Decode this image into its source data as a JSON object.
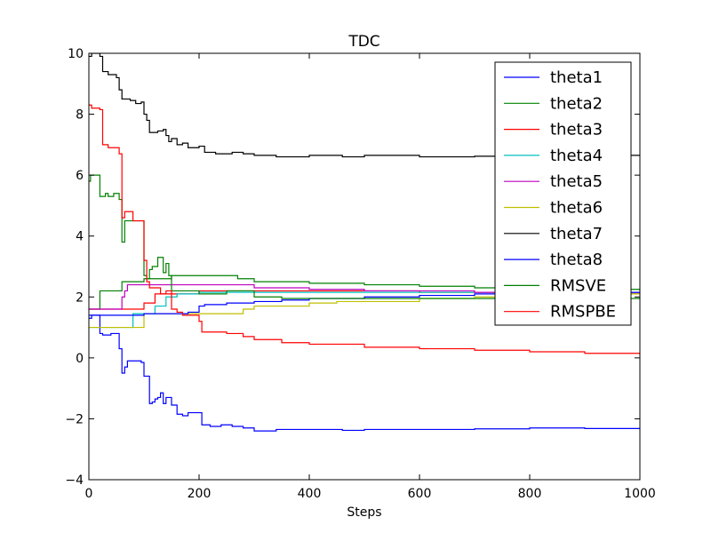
{
  "chart_data": {
    "type": "line",
    "title": "TDC",
    "xlabel": "Steps",
    "ylabel": "",
    "xlim": [
      0,
      1000
    ],
    "ylim": [
      -4,
      10
    ],
    "xticks": [
      0,
      200,
      400,
      600,
      800,
      1000
    ],
    "yticks": [
      -4,
      -2,
      0,
      2,
      4,
      6,
      8,
      10
    ],
    "grid": false,
    "legend_position": "top-right",
    "series": [
      {
        "name": "theta1",
        "color": "#0000ff",
        "x": [
          0,
          5,
          10,
          20,
          25,
          40,
          55,
          60,
          65,
          70,
          95,
          100,
          110,
          115,
          120,
          125,
          130,
          135,
          140,
          150,
          160,
          170,
          180,
          200,
          205,
          220,
          240,
          260,
          280,
          300,
          340,
          400,
          460,
          500,
          600,
          700,
          800,
          900,
          1000
        ],
        "y": [
          1.3,
          1.4,
          1.4,
          0.8,
          0.75,
          0.8,
          0.3,
          -0.5,
          -0.3,
          -0.1,
          -0.15,
          -0.6,
          -1.5,
          -1.45,
          -1.35,
          -1.3,
          -1.15,
          -1.5,
          -1.3,
          -1.55,
          -1.85,
          -1.9,
          -1.8,
          -1.8,
          -2.2,
          -2.25,
          -2.2,
          -2.25,
          -2.3,
          -2.4,
          -2.35,
          -2.35,
          -2.38,
          -2.35,
          -2.35,
          -2.33,
          -2.3,
          -2.32,
          -2.35
        ]
      },
      {
        "name": "theta2",
        "color": "#008000",
        "x": [
          0,
          5,
          10,
          20,
          30,
          60,
          100,
          150,
          200,
          270,
          300,
          400,
          500,
          600,
          700,
          800,
          900,
          1000
        ],
        "y": [
          1.6,
          1.6,
          1.6,
          2.2,
          2.2,
          2.5,
          2.6,
          2.7,
          2.7,
          2.6,
          2.5,
          2.45,
          2.4,
          2.35,
          2.3,
          2.3,
          2.25,
          2.2
        ]
      },
      {
        "name": "theta3",
        "color": "#ff0000",
        "x": [
          0,
          10,
          35,
          40,
          60,
          100,
          120,
          150,
          200,
          300,
          400,
          500,
          600,
          700,
          800,
          900,
          1000
        ],
        "y": [
          1.6,
          1.6,
          1.6,
          1.6,
          1.6,
          1.8,
          2.1,
          2.1,
          2.2,
          2.2,
          2.2,
          2.2,
          2.15,
          2.15,
          2.15,
          2.1,
          2.1
        ]
      },
      {
        "name": "theta4",
        "color": "#00bfbf",
        "x": [
          0,
          30,
          60,
          80,
          100,
          120,
          140,
          160,
          200,
          300,
          400,
          500,
          600,
          700,
          800,
          900,
          1000
        ],
        "y": [
          1.0,
          1.0,
          1.0,
          1.45,
          1.45,
          1.7,
          2.0,
          2.1,
          2.15,
          2.15,
          2.15,
          2.15,
          2.15,
          2.15,
          2.15,
          2.15,
          2.15
        ]
      },
      {
        "name": "theta5",
        "color": "#bf00bf",
        "x": [
          0,
          50,
          60,
          65,
          70,
          100,
          150,
          200,
          250,
          300,
          400,
          500,
          600,
          700,
          800,
          900,
          1000
        ],
        "y": [
          1.6,
          1.6,
          2.0,
          2.2,
          2.4,
          2.4,
          2.4,
          2.4,
          2.4,
          2.3,
          2.25,
          2.2,
          2.2,
          2.15,
          2.15,
          2.15,
          2.15
        ]
      },
      {
        "name": "theta6",
        "color": "#bfbf00",
        "x": [
          0,
          60,
          100,
          150,
          220,
          280,
          300,
          400,
          450,
          600,
          700,
          800,
          900,
          1000
        ],
        "y": [
          1.0,
          1.0,
          1.45,
          1.45,
          1.45,
          1.6,
          1.7,
          1.8,
          1.85,
          1.95,
          2.0,
          2.05,
          2.1,
          2.1
        ]
      },
      {
        "name": "theta7",
        "color": "#000000",
        "x": [
          0,
          5,
          20,
          25,
          35,
          50,
          55,
          60,
          75,
          85,
          95,
          100,
          105,
          110,
          125,
          135,
          140,
          145,
          150,
          160,
          170,
          180,
          200,
          210,
          230,
          260,
          280,
          300,
          340,
          400,
          460,
          500,
          600,
          700,
          800,
          900,
          1000
        ],
        "y": [
          9.9,
          10.0,
          9.9,
          9.4,
          9.3,
          9.2,
          8.8,
          8.5,
          8.45,
          8.35,
          8.4,
          8.0,
          7.8,
          7.4,
          7.45,
          7.5,
          7.3,
          7.1,
          7.2,
          7.0,
          7.05,
          6.9,
          6.95,
          6.75,
          6.7,
          6.75,
          6.7,
          6.65,
          6.6,
          6.65,
          6.6,
          6.65,
          6.6,
          6.62,
          6.65,
          6.65,
          6.65
        ]
      },
      {
        "name": "theta8",
        "color": "#0000ff",
        "x": [
          0,
          100,
          180,
          200,
          210,
          250,
          300,
          350,
          400,
          500,
          600,
          700,
          800,
          900,
          1000
        ],
        "y": [
          1.4,
          1.45,
          1.5,
          1.7,
          1.75,
          1.8,
          1.85,
          1.9,
          1.95,
          2.0,
          2.05,
          2.1,
          2.1,
          2.15,
          2.15
        ]
      },
      {
        "name": "RMSVE",
        "color": "#008000",
        "x": [
          0,
          3,
          5,
          10,
          15,
          20,
          30,
          35,
          45,
          55,
          60,
          65,
          70,
          90,
          100,
          105,
          110,
          115,
          125,
          135,
          140,
          145,
          150,
          170,
          200,
          250,
          280,
          300,
          350,
          400,
          500,
          600,
          700,
          800,
          900,
          1000
        ],
        "y": [
          5.8,
          6.0,
          6.0,
          6.0,
          6.0,
          5.3,
          5.4,
          5.3,
          5.4,
          5.2,
          3.8,
          4.5,
          4.5,
          4.5,
          2.7,
          2.6,
          2.9,
          3.0,
          3.3,
          2.8,
          3.1,
          2.7,
          2.2,
          2.2,
          2.1,
          2.2,
          2.2,
          2.0,
          1.95,
          1.95,
          1.95,
          1.95,
          1.95,
          1.95,
          1.95,
          1.95
        ]
      },
      {
        "name": "RMSPBE",
        "color": "#ff0000",
        "x": [
          0,
          5,
          10,
          20,
          25,
          35,
          40,
          55,
          60,
          65,
          70,
          80,
          100,
          105,
          110,
          120,
          130,
          140,
          150,
          160,
          170,
          180,
          200,
          205,
          220,
          250,
          280,
          300,
          350,
          400,
          500,
          600,
          700,
          800,
          900,
          1000
        ],
        "y": [
          8.3,
          8.2,
          8.2,
          8.15,
          7.0,
          6.9,
          6.9,
          6.7,
          4.6,
          4.8,
          4.8,
          4.5,
          3.2,
          2.5,
          2.3,
          2.3,
          2.1,
          2.2,
          1.6,
          1.5,
          1.4,
          1.4,
          1.2,
          0.85,
          0.85,
          0.8,
          0.7,
          0.6,
          0.5,
          0.45,
          0.35,
          0.3,
          0.25,
          0.2,
          0.15,
          0.1
        ]
      }
    ]
  }
}
